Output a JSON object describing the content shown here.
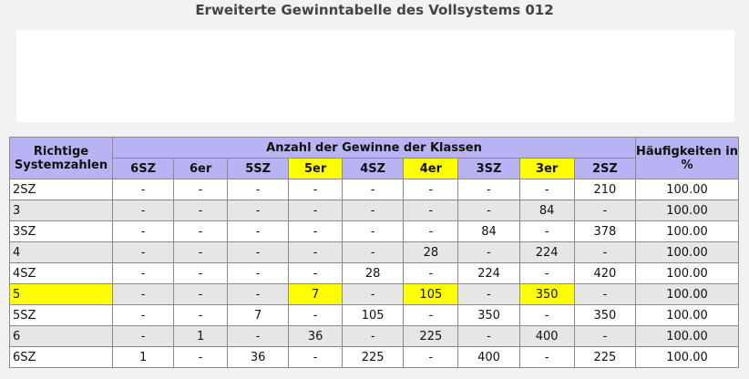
{
  "title": "Erweiterte Gewinntabelle des Vollsystems 012",
  "table": {
    "header_left": "Richtige Systemzahlen",
    "header_group": "Anzahl der Gewinne der Klassen",
    "header_right": "Häufigkeiten in %",
    "columns": [
      "6SZ",
      "6er",
      "5SZ",
      "5er",
      "4SZ",
      "4er",
      "3SZ",
      "3er",
      "2SZ"
    ],
    "highlight_columns": [
      "5er",
      "4er",
      "3er"
    ],
    "highlight_row": "5",
    "highlight_color": "#ffff00",
    "header_color": "#b8b3f2",
    "rows": [
      {
        "label": "2SZ",
        "cells": [
          "-",
          "-",
          "-",
          "-",
          "-",
          "-",
          "-",
          "-",
          "210"
        ],
        "pct": "100.00"
      },
      {
        "label": "3",
        "cells": [
          "-",
          "-",
          "-",
          "-",
          "-",
          "-",
          "-",
          "84",
          "-"
        ],
        "pct": "100.00"
      },
      {
        "label": "3SZ",
        "cells": [
          "-",
          "-",
          "-",
          "-",
          "-",
          "-",
          "84",
          "-",
          "378"
        ],
        "pct": "100.00"
      },
      {
        "label": "4",
        "cells": [
          "-",
          "-",
          "-",
          "-",
          "-",
          "28",
          "-",
          "224",
          "-"
        ],
        "pct": "100.00"
      },
      {
        "label": "4SZ",
        "cells": [
          "-",
          "-",
          "-",
          "-",
          "28",
          "-",
          "224",
          "-",
          "420"
        ],
        "pct": "100.00"
      },
      {
        "label": "5",
        "cells": [
          "-",
          "-",
          "-",
          "7",
          "-",
          "105",
          "-",
          "350",
          "-"
        ],
        "pct": "100.00"
      },
      {
        "label": "5SZ",
        "cells": [
          "-",
          "-",
          "7",
          "-",
          "105",
          "-",
          "350",
          "-",
          "350"
        ],
        "pct": "100.00"
      },
      {
        "label": "6",
        "cells": [
          "-",
          "1",
          "-",
          "36",
          "-",
          "225",
          "-",
          "400",
          "-"
        ],
        "pct": "100.00"
      },
      {
        "label": "6SZ",
        "cells": [
          "1",
          "-",
          "36",
          "-",
          "225",
          "-",
          "400",
          "-",
          "225"
        ],
        "pct": "100.00"
      }
    ]
  }
}
